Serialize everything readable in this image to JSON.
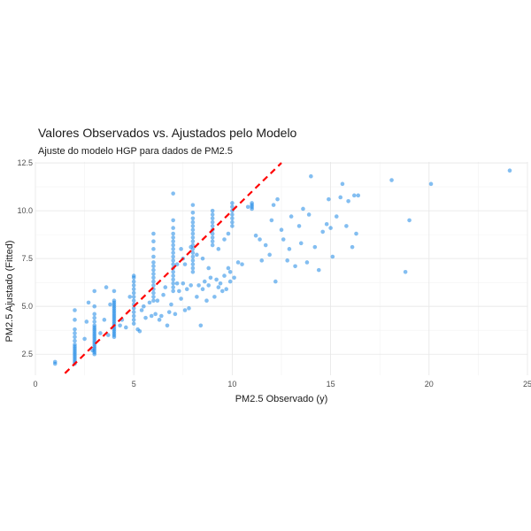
{
  "chart_data": {
    "type": "scatter",
    "title": "Valores Observados vs. Ajustados pelo Modelo",
    "subtitle": "Ajuste do modelo HGP para dados de PM2.5",
    "xlabel": "PM2.5 Observado (y)",
    "ylabel": "PM2.5 Ajustado (Fitted)",
    "xlim": [
      0,
      25
    ],
    "ylim": [
      1.4,
      12.55
    ],
    "x_ticks": [
      0,
      5,
      10,
      15,
      20,
      25
    ],
    "y_ticks": [
      2.5,
      5.0,
      7.5,
      10.0,
      12.5
    ],
    "x_tick_labels": [
      "0",
      "5",
      "10",
      "15",
      "20",
      "25"
    ],
    "y_tick_labels": [
      "2.5",
      "5.0",
      "7.5",
      "10.0",
      "12.5"
    ],
    "grid": true,
    "point_color": "#1E88E5",
    "reference_line": {
      "type": "identity",
      "color": "#FF0000",
      "style": "dashed",
      "x": [
        1.5,
        12.5
      ],
      "y": [
        1.5,
        12.5
      ]
    },
    "series": [
      {
        "points": [
          [
            1,
            2.0
          ],
          [
            1,
            2.1
          ],
          [
            2,
            2.0
          ],
          [
            2,
            2.1
          ],
          [
            2,
            2.2
          ],
          [
            2,
            2.3
          ],
          [
            2,
            2.4
          ],
          [
            2,
            2.5
          ],
          [
            2,
            2.6
          ],
          [
            2,
            2.7
          ],
          [
            2,
            2.8
          ],
          [
            2,
            2.9
          ],
          [
            2,
            3.0
          ],
          [
            2,
            3.2
          ],
          [
            2,
            3.4
          ],
          [
            2,
            3.6
          ],
          [
            2,
            3.8
          ],
          [
            2,
            4.3
          ],
          [
            2,
            4.8
          ],
          [
            2.5,
            3.3
          ],
          [
            2.6,
            4.2
          ],
          [
            2.7,
            5.2
          ],
          [
            2.9,
            2.7
          ],
          [
            3,
            2.5
          ],
          [
            3,
            2.6
          ],
          [
            3,
            2.7
          ],
          [
            3,
            2.8
          ],
          [
            3,
            2.9
          ],
          [
            3,
            3.0
          ],
          [
            3,
            3.1
          ],
          [
            3,
            3.2
          ],
          [
            3,
            3.3
          ],
          [
            3,
            3.4
          ],
          [
            3,
            3.5
          ],
          [
            3,
            3.6
          ],
          [
            3,
            3.7
          ],
          [
            3,
            3.8
          ],
          [
            3,
            3.9
          ],
          [
            3,
            4.0
          ],
          [
            3,
            4.2
          ],
          [
            3,
            4.4
          ],
          [
            3,
            4.6
          ],
          [
            3,
            5.0
          ],
          [
            3,
            5.8
          ],
          [
            3.3,
            3.6
          ],
          [
            3.5,
            4.3
          ],
          [
            3.6,
            6.0
          ],
          [
            3.7,
            3.5
          ],
          [
            3.8,
            5.1
          ],
          [
            4,
            3.4
          ],
          [
            4,
            3.5
          ],
          [
            4,
            3.6
          ],
          [
            4,
            3.7
          ],
          [
            4,
            3.8
          ],
          [
            4,
            3.9
          ],
          [
            4,
            4.0
          ],
          [
            4,
            4.1
          ],
          [
            4,
            4.2
          ],
          [
            4,
            4.3
          ],
          [
            4,
            4.4
          ],
          [
            4,
            4.5
          ],
          [
            4,
            4.6
          ],
          [
            4,
            4.7
          ],
          [
            4,
            4.8
          ],
          [
            4,
            4.9
          ],
          [
            4,
            5.0
          ],
          [
            4,
            5.1
          ],
          [
            4,
            5.2
          ],
          [
            4,
            5.3
          ],
          [
            4,
            5.8
          ],
          [
            4.3,
            4.0
          ],
          [
            4.4,
            4.3
          ],
          [
            4.6,
            3.9
          ],
          [
            4.8,
            5.5
          ],
          [
            5,
            4.1
          ],
          [
            5,
            4.3
          ],
          [
            5,
            4.5
          ],
          [
            5,
            4.7
          ],
          [
            5,
            4.9
          ],
          [
            5,
            5.1
          ],
          [
            5,
            5.3
          ],
          [
            5,
            5.5
          ],
          [
            5,
            5.7
          ],
          [
            5,
            5.9
          ],
          [
            5,
            6.1
          ],
          [
            5,
            6.3
          ],
          [
            5,
            6.5
          ],
          [
            5,
            6.6
          ],
          [
            5.2,
            3.8
          ],
          [
            5.3,
            3.7
          ],
          [
            5.4,
            4.8
          ],
          [
            5.5,
            5.0
          ],
          [
            5.6,
            4.4
          ],
          [
            5.8,
            5.2
          ],
          [
            5.9,
            4.5
          ],
          [
            6,
            5.3
          ],
          [
            6,
            5.5
          ],
          [
            6,
            5.7
          ],
          [
            6,
            5.9
          ],
          [
            6,
            6.1
          ],
          [
            6,
            6.3
          ],
          [
            6,
            6.5
          ],
          [
            6,
            6.7
          ],
          [
            6,
            6.9
          ],
          [
            6,
            7.1
          ],
          [
            6,
            7.3
          ],
          [
            6,
            7.6
          ],
          [
            6,
            8.0
          ],
          [
            6,
            8.4
          ],
          [
            6,
            8.8
          ],
          [
            6.1,
            4.6
          ],
          [
            6.2,
            5.3
          ],
          [
            6.3,
            4.3
          ],
          [
            6.4,
            4.5
          ],
          [
            6.5,
            5.6
          ],
          [
            6.6,
            6.0
          ],
          [
            6.7,
            4.0
          ],
          [
            6.8,
            4.7
          ],
          [
            6.9,
            5.1
          ],
          [
            7,
            5.8
          ],
          [
            7,
            6.0
          ],
          [
            7,
            6.2
          ],
          [
            7,
            6.4
          ],
          [
            7,
            6.6
          ],
          [
            7,
            6.8
          ],
          [
            7,
            7.0
          ],
          [
            7,
            7.2
          ],
          [
            7,
            7.4
          ],
          [
            7,
            7.6
          ],
          [
            7,
            7.8
          ],
          [
            7,
            8.0
          ],
          [
            7,
            8.2
          ],
          [
            7,
            8.4
          ],
          [
            7,
            8.6
          ],
          [
            7,
            8.8
          ],
          [
            7,
            9.1
          ],
          [
            7,
            9.5
          ],
          [
            7,
            10.9
          ],
          [
            7.1,
            4.6
          ],
          [
            7.2,
            6.2
          ],
          [
            7.3,
            5.8
          ],
          [
            7.4,
            5.4
          ],
          [
            7.5,
            6.2
          ],
          [
            7.6,
            4.8
          ],
          [
            7.7,
            5.9
          ],
          [
            7.8,
            4.9
          ],
          [
            7.9,
            6.1
          ],
          [
            7.2,
            7.2
          ],
          [
            7.4,
            8.0
          ],
          [
            7.5,
            7.5
          ],
          [
            7.6,
            7.2
          ],
          [
            7.9,
            8.1
          ],
          [
            8,
            6.8
          ],
          [
            8,
            7.0
          ],
          [
            8,
            7.2
          ],
          [
            8,
            7.4
          ],
          [
            8,
            7.6
          ],
          [
            8,
            7.8
          ],
          [
            8,
            8.0
          ],
          [
            8,
            8.2
          ],
          [
            8,
            8.4
          ],
          [
            8,
            8.6
          ],
          [
            8,
            8.8
          ],
          [
            8,
            9.0
          ],
          [
            8,
            9.2
          ],
          [
            8,
            9.4
          ],
          [
            8,
            9.6
          ],
          [
            8,
            9.9
          ],
          [
            8,
            10.3
          ],
          [
            8.2,
            5.5
          ],
          [
            8.3,
            6.1
          ],
          [
            8.4,
            4.0
          ],
          [
            8.5,
            5.9
          ],
          [
            8.6,
            6.3
          ],
          [
            8.7,
            5.3
          ],
          [
            8.8,
            6.1
          ],
          [
            8.9,
            6.5
          ],
          [
            8.2,
            7.7
          ],
          [
            8.5,
            7.5
          ],
          [
            8.8,
            7.0
          ],
          [
            9,
            8.2
          ],
          [
            9,
            8.4
          ],
          [
            9,
            8.6
          ],
          [
            9,
            8.8
          ],
          [
            9,
            9.0
          ],
          [
            9,
            9.2
          ],
          [
            9,
            9.4
          ],
          [
            9,
            9.6
          ],
          [
            9,
            9.8
          ],
          [
            9,
            10.0
          ],
          [
            9.1,
            5.5
          ],
          [
            9.2,
            6.4
          ],
          [
            9.3,
            6.0
          ],
          [
            9.4,
            6.2
          ],
          [
            9.5,
            5.8
          ],
          [
            9.6,
            6.6
          ],
          [
            9.7,
            5.9
          ],
          [
            9.8,
            7.0
          ],
          [
            9.9,
            6.3
          ],
          [
            9.3,
            8.0
          ],
          [
            9.6,
            8.5
          ],
          [
            9.8,
            8.8
          ],
          [
            9.9,
            6.8
          ],
          [
            10,
            9.2
          ],
          [
            10,
            9.4
          ],
          [
            10,
            9.6
          ],
          [
            10,
            9.8
          ],
          [
            10,
            10.0
          ],
          [
            10,
            10.2
          ],
          [
            10,
            10.4
          ],
          [
            10.1,
            6.5
          ],
          [
            10.3,
            7.3
          ],
          [
            10.5,
            7.2
          ],
          [
            10.8,
            10.2
          ],
          [
            11,
            10.1
          ],
          [
            11,
            10.2
          ],
          [
            11,
            10.3
          ],
          [
            11,
            10.4
          ],
          [
            11.2,
            8.7
          ],
          [
            11.4,
            8.5
          ],
          [
            11.5,
            7.4
          ],
          [
            11.7,
            8.2
          ],
          [
            11.9,
            7.7
          ],
          [
            12,
            9.5
          ],
          [
            12.1,
            10.3
          ],
          [
            12.2,
            6.3
          ],
          [
            12.3,
            10.6
          ],
          [
            12.5,
            9.0
          ],
          [
            12.6,
            8.5
          ],
          [
            12.8,
            7.4
          ],
          [
            12.9,
            8.0
          ],
          [
            13,
            9.7
          ],
          [
            13.2,
            7.1
          ],
          [
            13.4,
            9.2
          ],
          [
            13.5,
            8.3
          ],
          [
            13.6,
            10.1
          ],
          [
            13.8,
            7.3
          ],
          [
            13.9,
            9.8
          ],
          [
            14.0,
            11.8
          ],
          [
            14.2,
            8.1
          ],
          [
            14.4,
            6.9
          ],
          [
            14.6,
            8.9
          ],
          [
            14.8,
            9.3
          ],
          [
            14.9,
            10.6
          ],
          [
            15.0,
            9.1
          ],
          [
            15.1,
            7.6
          ],
          [
            15.3,
            9.7
          ],
          [
            15.5,
            10.7
          ],
          [
            15.6,
            11.4
          ],
          [
            15.8,
            9.2
          ],
          [
            15.9,
            10.5
          ],
          [
            16.1,
            8.1
          ],
          [
            16.2,
            10.8
          ],
          [
            16.3,
            8.8
          ],
          [
            16.4,
            10.8
          ],
          [
            18.1,
            11.6
          ],
          [
            18.8,
            6.8
          ],
          [
            19.0,
            9.5
          ],
          [
            20.1,
            11.4
          ],
          [
            24.1,
            12.1
          ]
        ]
      }
    ]
  }
}
